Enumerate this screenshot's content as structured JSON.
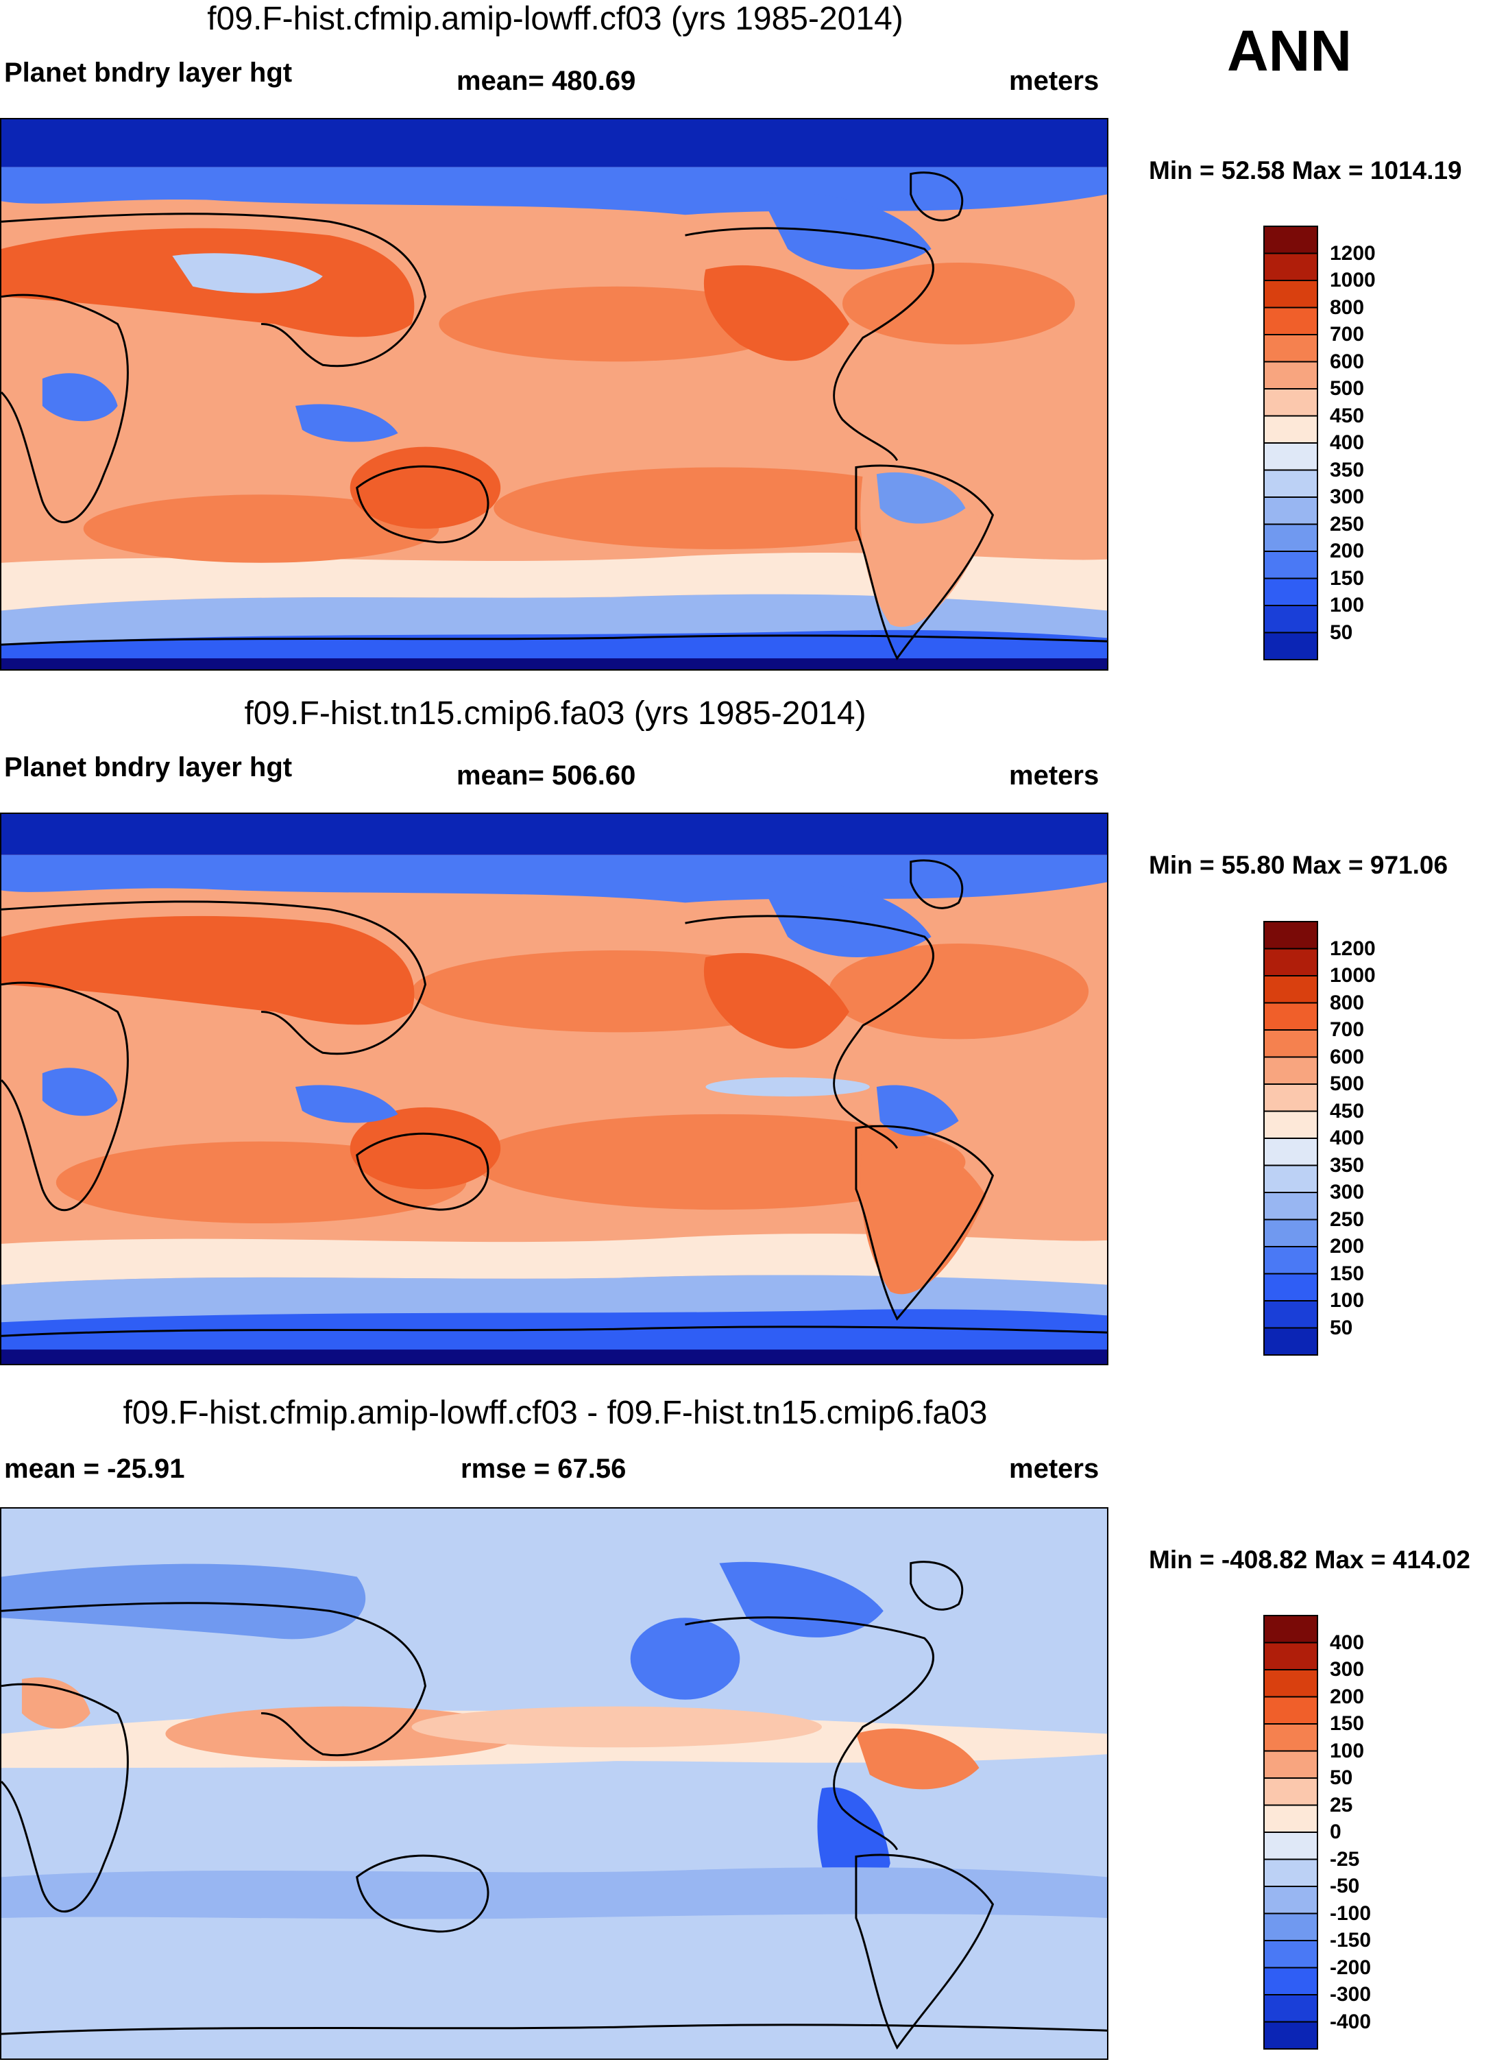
{
  "season": "ANN",
  "panels": [
    {
      "title": "f09.F-hist.cfmip.amip-lowff.cf03 (yrs 1985-2014)",
      "left_label": "Planet bndry layer hgt",
      "center_label": "mean= 480.69",
      "right_label": "meters",
      "minmax": "Min =  52.58 Max = 1014.19"
    },
    {
      "title": "f09.F-hist.tn15.cmip6.fa03 (yrs 1985-2014)",
      "left_label": "Planet bndry layer hgt",
      "center_label": "mean= 506.60",
      "right_label": "meters",
      "minmax": "Min =  55.80 Max = 971.06"
    },
    {
      "title": "f09.F-hist.cfmip.amip-lowff.cf03 - f09.F-hist.tn15.cmip6.fa03",
      "left_label": "mean = -25.91",
      "center_label": "rmse =  67.56",
      "right_label": "meters",
      "minmax": "Min = -408.82 Max = 414.02"
    }
  ],
  "colors": {
    "abs_scale": [
      "#0a0a80",
      "#0b25b5",
      "#1a3fd8",
      "#2f5ef5",
      "#4a79f5",
      "#7099f0",
      "#98b6f2",
      "#bcd1f5",
      "#dfe8f7",
      "#fde8d8",
      "#fbc8ad",
      "#f8a57f",
      "#f5814f",
      "#f05f2a",
      "#d9400f",
      "#b01e0a",
      "#7a0a07"
    ],
    "diff_scale": [
      "#0a0a80",
      "#0b25b5",
      "#1a3fd8",
      "#2f5ef5",
      "#4a79f5",
      "#7099f0",
      "#98b6f2",
      "#bcd1f5",
      "#dfe8f7",
      "#fde8d8",
      "#fbc8ad",
      "#f8a57f",
      "#f5814f",
      "#f05f2a",
      "#d9400f",
      "#b01e0a",
      "#7a0a07"
    ]
  },
  "chart_data": [
    {
      "type": "contour_map",
      "title": "f09.F-hist.cfmip.amip-lowff.cf03 (yrs 1985-2014)",
      "variable": "Planet bndry layer hgt",
      "units": "meters",
      "mean": 480.69,
      "min": 52.58,
      "max": 1014.19,
      "contour_levels": [
        50,
        100,
        150,
        200,
        250,
        300,
        350,
        400,
        450,
        500,
        600,
        700,
        800,
        1000,
        1200
      ],
      "colorbar_labels": [
        "1200",
        "1000",
        "800",
        "700",
        "600",
        "500",
        "450",
        "400",
        "350",
        "300",
        "250",
        "200",
        "150",
        "100",
        "50"
      ]
    },
    {
      "type": "contour_map",
      "title": "f09.F-hist.tn15.cmip6.fa03 (yrs 1985-2014)",
      "variable": "Planet bndry layer hgt",
      "units": "meters",
      "mean": 506.6,
      "min": 55.8,
      "max": 971.06,
      "contour_levels": [
        50,
        100,
        150,
        200,
        250,
        300,
        350,
        400,
        450,
        500,
        600,
        700,
        800,
        1000,
        1200
      ],
      "colorbar_labels": [
        "1200",
        "1000",
        "800",
        "700",
        "600",
        "500",
        "450",
        "400",
        "350",
        "300",
        "250",
        "200",
        "150",
        "100",
        "50"
      ]
    },
    {
      "type": "contour_map",
      "title": "f09.F-hist.cfmip.amip-lowff.cf03 - f09.F-hist.tn15.cmip6.fa03",
      "units": "meters",
      "mean": -25.91,
      "rmse": 67.56,
      "min": -408.82,
      "max": 414.02,
      "contour_levels": [
        -400,
        -300,
        -200,
        -150,
        -100,
        -50,
        -25,
        0,
        25,
        50,
        100,
        150,
        200,
        300,
        400
      ],
      "colorbar_labels": [
        "400",
        "300",
        "200",
        "150",
        "100",
        "50",
        "25",
        "0",
        "-25",
        "-50",
        "-100",
        "-150",
        "-200",
        "-300",
        "-400"
      ]
    }
  ]
}
